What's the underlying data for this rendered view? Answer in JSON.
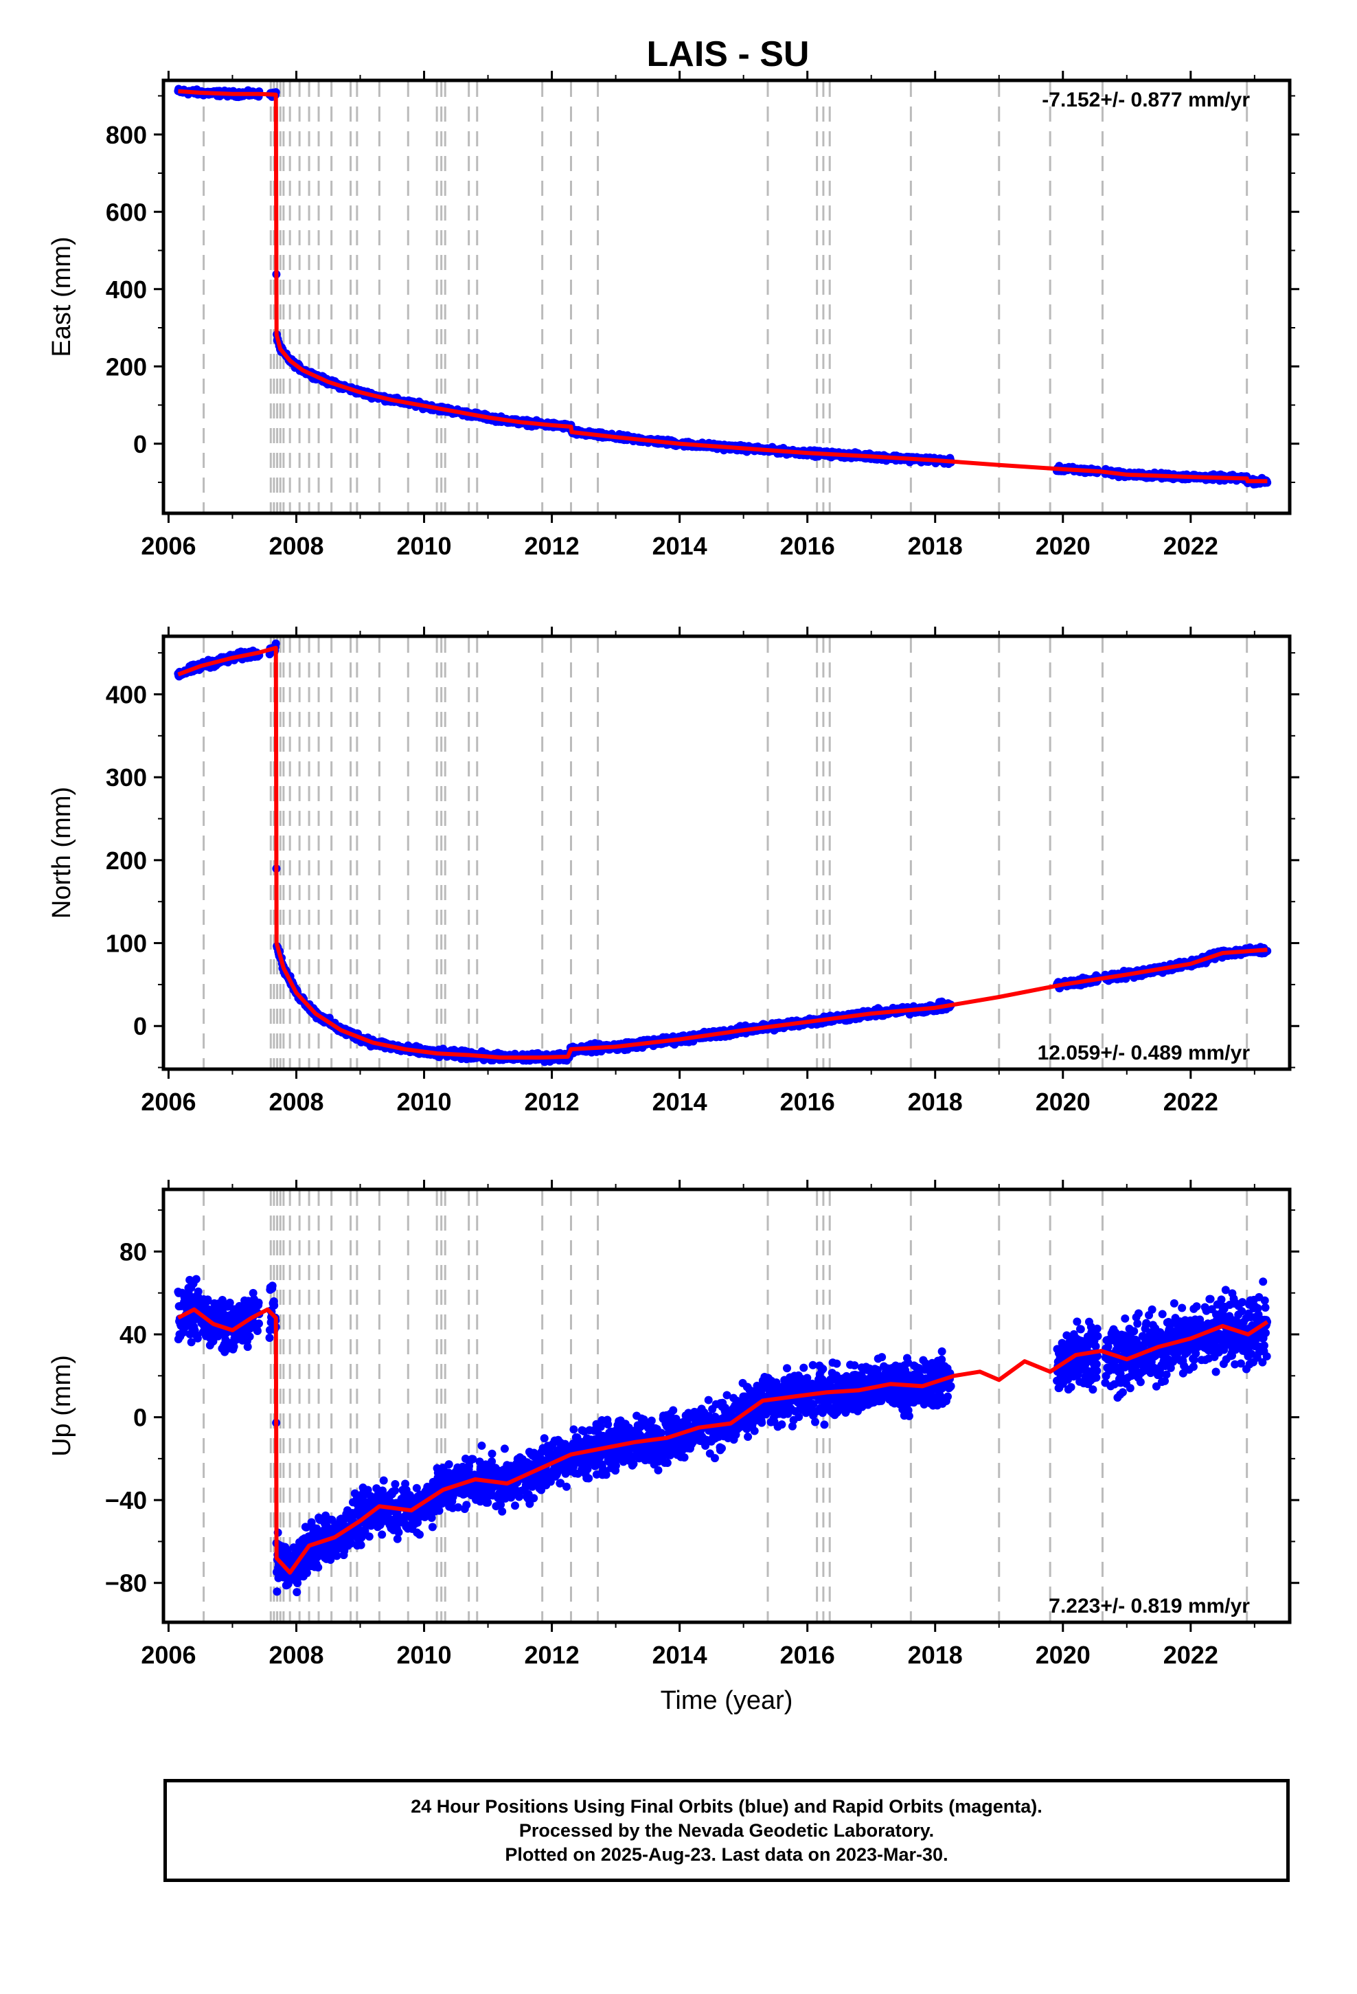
{
  "chart_data": {
    "title": "LAIS - SU",
    "type": "scatter",
    "xlabel": "Time (year)",
    "xlim": [
      2005.92,
      2023.55
    ],
    "xticks": [
      2006,
      2008,
      2010,
      2012,
      2014,
      2016,
      2018,
      2020,
      2022
    ],
    "step_epochs": [
      2006.55,
      2007.6,
      2007.65,
      2007.7,
      2007.75,
      2007.8,
      2007.9,
      2008.05,
      2008.2,
      2008.35,
      2008.55,
      2008.85,
      2008.95,
      2009.3,
      2009.75,
      2010.2,
      2010.27,
      2010.33,
      2010.7,
      2010.83,
      2011.85,
      2012.3,
      2012.72,
      2015.38,
      2016.15,
      2016.25,
      2016.35,
      2017.62,
      2019.0,
      2019.8,
      2020.62,
      2022.88
    ],
    "colors": {
      "observations": "#0000ff",
      "model": "#ff0000",
      "step_lines": "#bbbbbb"
    },
    "panels": [
      {
        "ylabel": "East (mm)",
        "ylim": [
          -180,
          940
        ],
        "yticks": [
          0,
          200,
          400,
          600,
          800
        ],
        "rate_label": "-7.152+/- 0.877 mm/yr",
        "rate_position": "top-right",
        "series": [
          {
            "name": "",
            "x": [
              2006.15,
              2006.5,
              2007.0,
              2007.4,
              2007.68,
              2007.69,
              2007.75,
              2007.9,
              2008.1,
              2008.5,
              2009.0,
              2009.5,
              2010.0,
              2010.5,
              2011.0,
              2011.5,
              2012.0,
              2012.3,
              2012.31,
              2013.0,
              2014.0,
              2015.0,
              2016.0,
              2017.0,
              2018.0,
              2019.0,
              2020.0,
              2020.6,
              2021.0,
              2022.0,
              2022.88,
              2022.89,
              2023.2
            ],
            "y": [
              912,
              908,
              905,
              905,
              903,
              282,
              245,
              215,
              190,
              160,
              133,
              113,
              98,
              83,
              68,
              56,
              48,
              44,
              30,
              17,
              0,
              -12,
              -24,
              -33,
              -43,
              -55,
              -66,
              -72,
              -80,
              -86,
              -90,
              -97,
              -97
            ]
          }
        ]
      },
      {
        "ylabel": "North (mm)",
        "ylim": [
          -52,
          470
        ],
        "yticks": [
          0,
          100,
          200,
          300,
          400
        ],
        "rate_label": "12.059+/- 0.489 mm/yr",
        "rate_position": "bottom-right",
        "series": [
          {
            "name": "",
            "x": [
              2006.15,
              2006.5,
              2007.0,
              2007.4,
              2007.68,
              2007.69,
              2007.8,
              2008.0,
              2008.3,
              2008.7,
              2009.2,
              2009.7,
              2010.2,
              2010.7,
              2011.2,
              2011.8,
              2012.25,
              2012.3,
              2013.0,
              2014.0,
              2015.0,
              2016.0,
              2017.0,
              2018.0,
              2019.0,
              2020.0,
              2021.0,
              2022.0,
              2022.5,
              2023.2
            ],
            "y": [
              424,
              434,
              444,
              450,
              456,
              100,
              70,
              40,
              15,
              -5,
              -20,
              -28,
              -33,
              -35,
              -38,
              -38,
              -37,
              -28,
              -25,
              -16,
              -5,
              5,
              15,
              22,
              35,
              50,
              62,
              75,
              88,
              92
            ]
          }
        ]
      },
      {
        "ylabel": "Up (mm)",
        "ylim": [
          -99,
          110
        ],
        "yticks": [
          -80,
          -40,
          0,
          40,
          80
        ],
        "rate_label": "7.223+/- 0.819 mm/yr",
        "rate_position": "bottom-right",
        "series": [
          {
            "name": "",
            "x": [
              2006.15,
              2006.4,
              2006.7,
              2007.0,
              2007.3,
              2007.55,
              2007.68,
              2007.69,
              2007.9,
              2008.2,
              2008.6,
              2009.0,
              2009.3,
              2009.8,
              2010.3,
              2010.8,
              2011.3,
              2011.8,
              2012.3,
              2012.8,
              2013.3,
              2013.8,
              2014.3,
              2014.8,
              2015.3,
              2015.8,
              2016.3,
              2016.8,
              2017.3,
              2017.8,
              2018.3,
              2018.7,
              2019.0,
              2019.4,
              2019.8,
              2020.2,
              2020.6,
              2021.0,
              2021.5,
              2022.0,
              2022.5,
              2022.9,
              2023.2
            ],
            "y": [
              48,
              52,
              45,
              42,
              48,
              52,
              48,
              -68,
              -75,
              -62,
              -58,
              -50,
              -43,
              -45,
              -35,
              -30,
              -32,
              -25,
              -18,
              -15,
              -12,
              -10,
              -5,
              -3,
              8,
              10,
              12,
              13,
              16,
              15,
              20,
              22,
              18,
              27,
              22,
              30,
              32,
              28,
              34,
              38,
              44,
              40,
              46
            ]
          }
        ]
      }
    ]
  },
  "footer": {
    "line1": "24 Hour Positions Using Final Orbits (blue) and Rapid Orbits (magenta).",
    "line2": "Processed by the Nevada Geodetic Laboratory.",
    "line3": "Plotted on 2025-Aug-23. Last data on 2023-Mar-30."
  }
}
